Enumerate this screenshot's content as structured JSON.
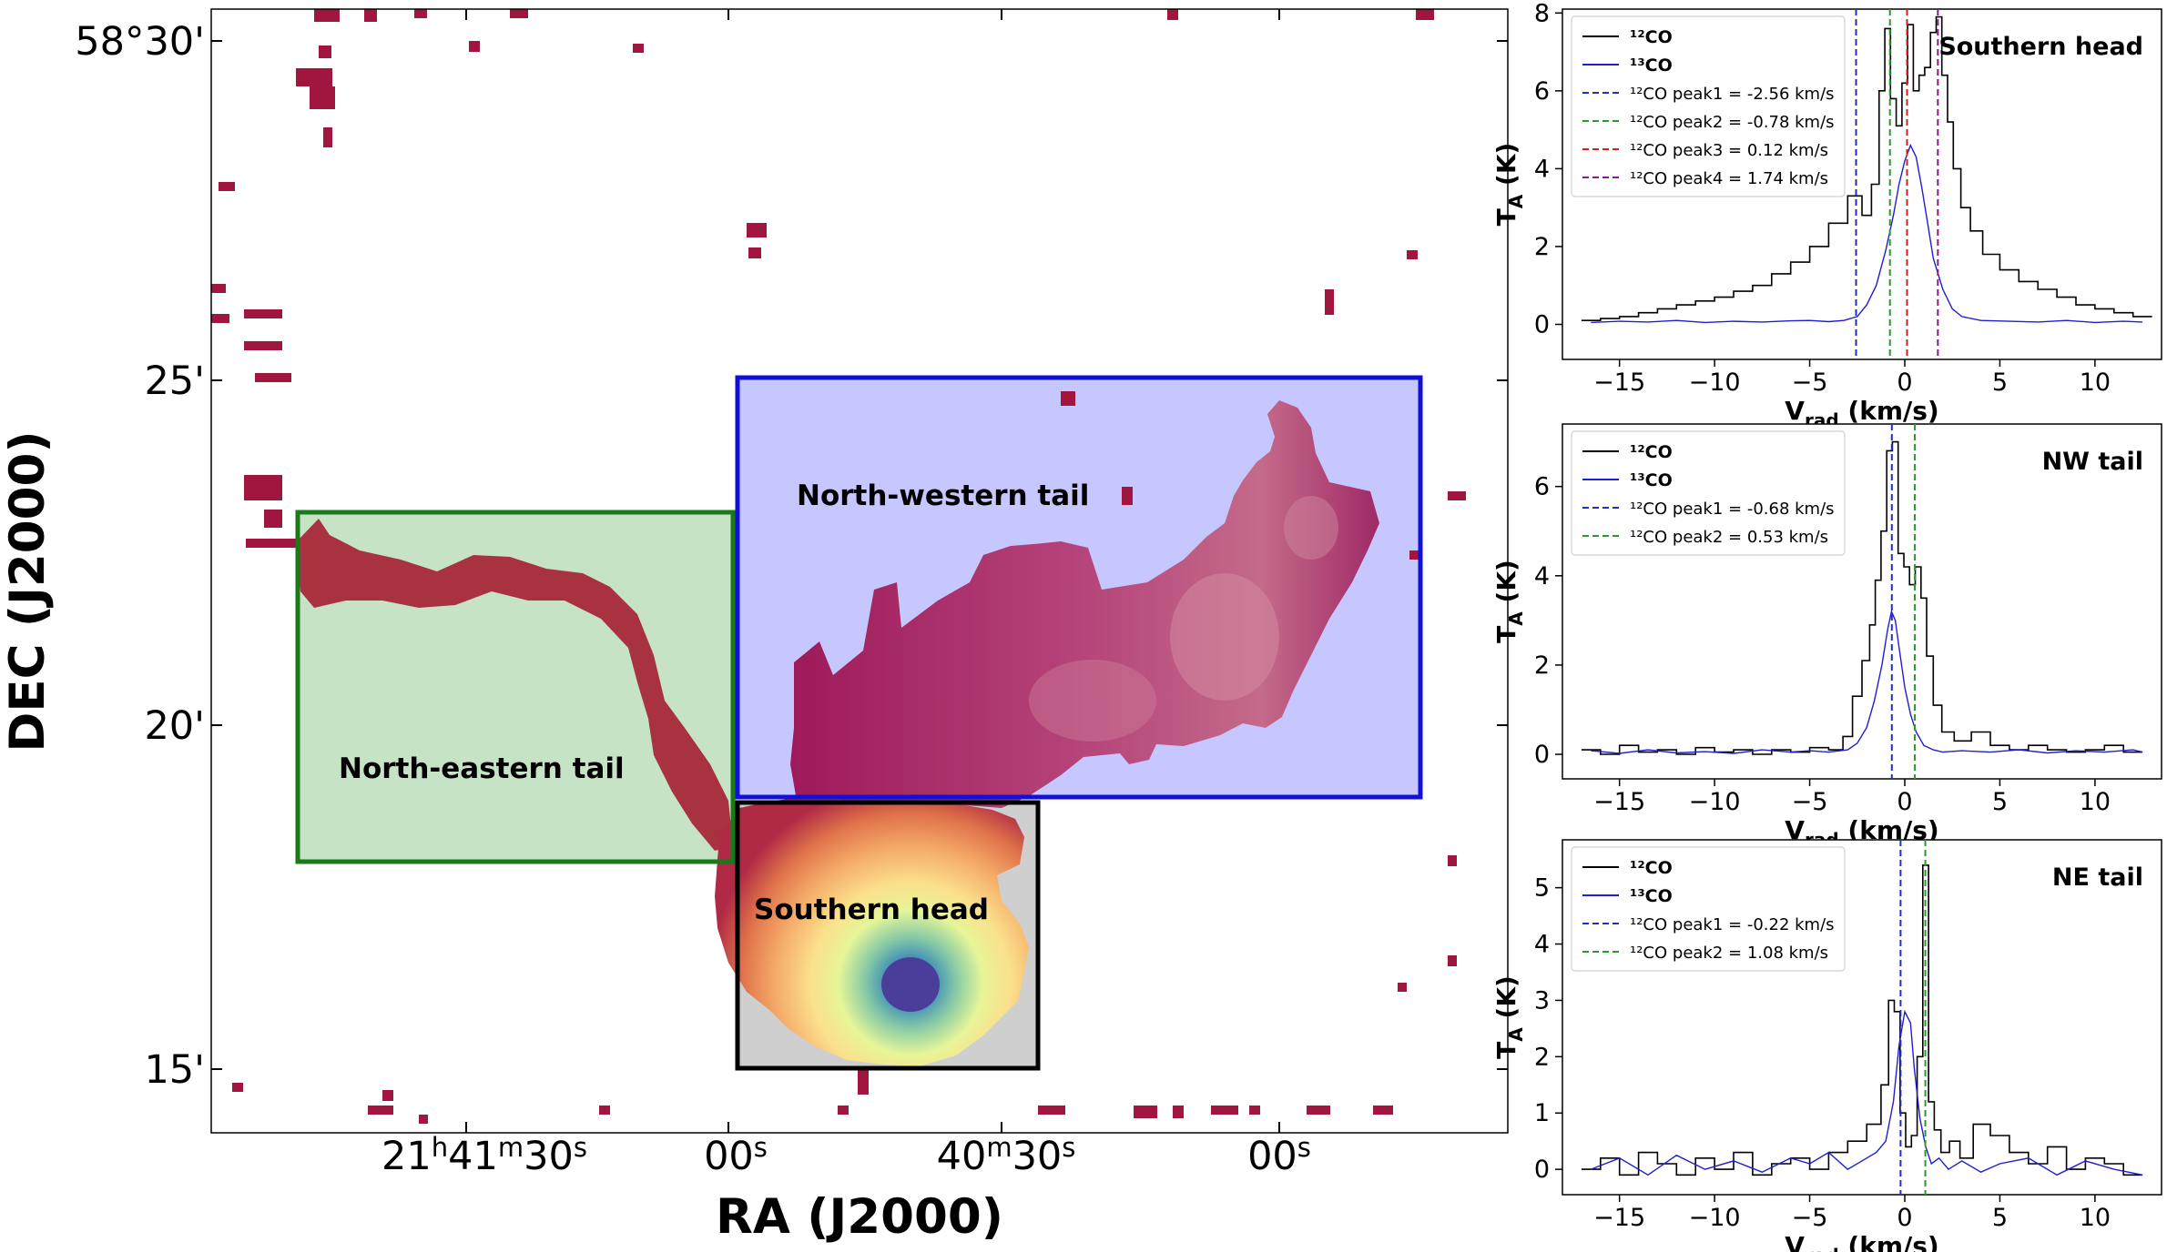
{
  "map_panel": {
    "xlabel": "RA (J2000)",
    "ylabel": "DEC (J2000)",
    "x_ticks": [
      {
        "value": "21h41m30s",
        "label_parts": [
          "21",
          "h",
          "41",
          "m",
          "30",
          "s"
        ]
      },
      {
        "value": "21h41m00s",
        "label_parts": [
          "00",
          "s"
        ]
      },
      {
        "value": "21h40m30s",
        "label_parts": [
          "40",
          "m",
          "30",
          "s"
        ]
      },
      {
        "value": "21h40m00s",
        "label_parts": [
          "00",
          "s"
        ]
      }
    ],
    "y_ticks": [
      "58°30'",
      "25'",
      "20'",
      "15'"
    ],
    "regions": [
      {
        "name": "North-eastern tail",
        "color": "#1a7a1a",
        "fill": "#c6e3c6"
      },
      {
        "name": "North-western tail",
        "color": "#1010d8",
        "fill": "#c7c7ff"
      },
      {
        "name": "Southern head",
        "color": "#000000",
        "fill": "#cfcfcf"
      }
    ],
    "colormap": [
      "#9e0142",
      "#c23a4b",
      "#e0734a",
      "#f4a968",
      "#fbe08b",
      "#e6f598",
      "#8fcfa4",
      "#3f8fb8",
      "#5e4fa2"
    ]
  },
  "chart_data": [
    {
      "type": "line",
      "title": "Southern head",
      "xlabel": "V",
      "xlabel_sub": "rad",
      "xlabel_unit": " (km/s)",
      "ylabel": "T",
      "ylabel_sub": "A",
      "ylabel_unit": " (K)",
      "xlim": [
        -18,
        13.5
      ],
      "ylim": [
        -0.9,
        8.1
      ],
      "x_ticks": [
        -15,
        -10,
        -5,
        0,
        5,
        10
      ],
      "x_tick_labels": [
        "−15",
        "−10",
        "−5",
        "0",
        "5",
        "10"
      ],
      "y_ticks": [
        0,
        2,
        4,
        6,
        8
      ],
      "y_tick_labels": [
        "0",
        "2",
        "4",
        "6",
        "8"
      ],
      "series": [
        {
          "name": "¹²CO",
          "color": "#000000",
          "style": "step",
          "x": [
            -16.5,
            -15.5,
            -14.5,
            -13.5,
            -12.5,
            -11.5,
            -10.5,
            -9.5,
            -8.5,
            -7.5,
            -6.5,
            -5.5,
            -4.5,
            -3.5,
            -2.5,
            -2,
            -1.5,
            -1.2,
            -0.9,
            -0.6,
            -0.3,
            0,
            0.3,
            0.6,
            0.9,
            1.2,
            1.5,
            1.8,
            2.1,
            2.4,
            2.7,
            3.2,
            3.7,
            4.5,
            5.5,
            6.5,
            7.5,
            8.5,
            9.5,
            10.5,
            11.5,
            12.5
          ],
          "y": [
            0.1,
            0.15,
            0.2,
            0.3,
            0.4,
            0.5,
            0.6,
            0.7,
            0.85,
            1.0,
            1.3,
            1.6,
            2.0,
            2.6,
            3.3,
            2.8,
            3.6,
            6.0,
            7.6,
            5.8,
            5.1,
            6.2,
            7.7,
            6.0,
            6.4,
            6.6,
            7.5,
            7.9,
            6.4,
            5.2,
            4.0,
            3.0,
            2.4,
            1.8,
            1.4,
            1.1,
            0.9,
            0.7,
            0.5,
            0.4,
            0.3,
            0.2
          ]
        },
        {
          "name": "¹³CO",
          "color": "#1f1fd0",
          "style": "line",
          "x": [
            -16.5,
            -15,
            -13.5,
            -12,
            -10.5,
            -9,
            -7.5,
            -6,
            -5,
            -4,
            -3.2,
            -2.5,
            -2,
            -1.5,
            -1,
            -0.6,
            -0.3,
            0,
            0.3,
            0.6,
            0.9,
            1.2,
            1.5,
            2,
            2.5,
            3,
            4,
            5.5,
            7,
            8.5,
            10,
            11.5,
            12.5
          ],
          "y": [
            0.05,
            0.08,
            0.06,
            0.1,
            0.05,
            0.08,
            0.06,
            0.09,
            0.1,
            0.07,
            0.1,
            0.2,
            0.5,
            1.0,
            1.9,
            2.8,
            3.6,
            4.2,
            4.6,
            4.3,
            3.5,
            2.6,
            1.7,
            0.9,
            0.4,
            0.2,
            0.1,
            0.08,
            0.06,
            0.1,
            0.05,
            0.08,
            0.06
          ]
        },
        {
          "name": "peak1",
          "color": "#2030c0",
          "style": "dashed",
          "vline": -2.56
        },
        {
          "name": "peak2",
          "color": "#2a9a2a",
          "style": "dashed",
          "vline": -0.78
        },
        {
          "name": "peak3",
          "color": "#d02020",
          "style": "dashed",
          "vline": 0.12
        },
        {
          "name": "peak4",
          "color": "#8a1a8a",
          "style": "dashed",
          "vline": 1.74
        }
      ],
      "legend": {
        "placement": "top-left",
        "entries": [
          {
            "text": "¹²CO",
            "bold": true,
            "color": "#000000",
            "dashed": false
          },
          {
            "text": "¹³CO",
            "bold": true,
            "color": "#1f1fd0",
            "dashed": false
          },
          {
            "text": "¹²CO peak1 = -2.56 km/s",
            "bold": false,
            "color": "#2030c0",
            "dashed": true
          },
          {
            "text": "¹²CO peak2 = -0.78 km/s",
            "bold": false,
            "color": "#2a9a2a",
            "dashed": true
          },
          {
            "text": "¹²CO peak3 = 0.12 km/s",
            "bold": false,
            "color": "#d02020",
            "dashed": true
          },
          {
            "text": "¹²CO peak4 = 1.74 km/s",
            "bold": false,
            "color": "#8a1a8a",
            "dashed": true
          }
        ]
      }
    },
    {
      "type": "line",
      "title": "NW tail",
      "xlabel": "V",
      "xlabel_sub": "rad",
      "xlabel_unit": " (km/s)",
      "ylabel": "T",
      "ylabel_sub": "A",
      "ylabel_unit": " (K)",
      "xlim": [
        -18,
        13.5
      ],
      "ylim": [
        -0.55,
        7.4
      ],
      "x_ticks": [
        -15,
        -10,
        -5,
        0,
        5,
        10
      ],
      "x_tick_labels": [
        "−15",
        "−10",
        "−5",
        "0",
        "5",
        "10"
      ],
      "y_ticks": [
        0,
        2,
        4,
        6
      ],
      "y_tick_labels": [
        "0",
        "2",
        "4",
        "6"
      ],
      "series": [
        {
          "name": "¹²CO",
          "color": "#000000",
          "style": "step",
          "x": [
            -16.5,
            -15.5,
            -14.5,
            -13.5,
            -12.5,
            -11.5,
            -10.5,
            -9.5,
            -8.5,
            -7.5,
            -6.5,
            -5.5,
            -4.5,
            -3.5,
            -3,
            -2.5,
            -2,
            -1.7,
            -1.4,
            -1.1,
            -0.8,
            -0.5,
            -0.2,
            0.1,
            0.4,
            0.7,
            1.0,
            1.3,
            1.7,
            2.2,
            3,
            4,
            5,
            6,
            7,
            8,
            9,
            10,
            11,
            12
          ],
          "y": [
            0.1,
            0.0,
            0.2,
            0.05,
            0.1,
            0.0,
            0.15,
            0.05,
            0.1,
            0.0,
            0.1,
            0.05,
            0.15,
            0.1,
            0.4,
            1.3,
            2.1,
            2.9,
            3.9,
            5.0,
            6.8,
            7.0,
            4.5,
            4.2,
            3.8,
            4.2,
            3.5,
            2.2,
            1.1,
            0.5,
            0.3,
            0.5,
            0.2,
            0.1,
            0.2,
            0.1,
            0.05,
            0.1,
            0.2,
            0.05
          ]
        },
        {
          "name": "¹³CO",
          "color": "#1f1fd0",
          "style": "line",
          "x": [
            -16.5,
            -15,
            -13.5,
            -12,
            -10.5,
            -9,
            -7.5,
            -6,
            -5,
            -4,
            -3,
            -2.5,
            -2,
            -1.6,
            -1.2,
            -0.9,
            -0.7,
            -0.5,
            -0.3,
            0,
            0.3,
            0.6,
            1,
            1.5,
            2,
            3,
            4.5,
            6,
            7.5,
            9,
            10.5,
            12,
            12.5
          ],
          "y": [
            0.08,
            0.02,
            0.1,
            0.03,
            0.06,
            0.02,
            0.1,
            0.05,
            0.08,
            0.05,
            0.1,
            0.25,
            0.6,
            1.2,
            2.0,
            2.8,
            3.2,
            3.0,
            2.4,
            1.5,
            0.9,
            0.5,
            0.2,
            0.1,
            0.05,
            0.08,
            0.05,
            0.1,
            0.03,
            0.08,
            0.05,
            0.1,
            0.05
          ]
        },
        {
          "name": "peak1",
          "color": "#2030c0",
          "style": "dashed",
          "vline": -0.68
        },
        {
          "name": "peak2",
          "color": "#2a9a2a",
          "style": "dashed",
          "vline": 0.53
        }
      ],
      "legend": {
        "placement": "top-left",
        "entries": [
          {
            "text": "¹²CO",
            "bold": true,
            "color": "#000000",
            "dashed": false
          },
          {
            "text": "¹³CO",
            "bold": true,
            "color": "#1f1fd0",
            "dashed": false
          },
          {
            "text": "¹²CO peak1 = -0.68 km/s",
            "bold": false,
            "color": "#2030c0",
            "dashed": true
          },
          {
            "text": "¹²CO peak2 = 0.53 km/s",
            "bold": false,
            "color": "#2a9a2a",
            "dashed": true
          }
        ]
      }
    },
    {
      "type": "line",
      "title": "NE tail",
      "xlabel": "V",
      "xlabel_sub": "rad",
      "xlabel_unit": " (km/s)",
      "ylabel": "T",
      "ylabel_sub": "A",
      "ylabel_unit": " (K)",
      "xlim": [
        -18,
        13.5
      ],
      "ylim": [
        -0.45,
        5.85
      ],
      "x_ticks": [
        -15,
        -10,
        -5,
        0,
        5,
        10
      ],
      "x_tick_labels": [
        "−15",
        "−10",
        "−5",
        "0",
        "5",
        "10"
      ],
      "y_ticks": [
        0,
        1,
        2,
        3,
        4,
        5
      ],
      "y_tick_labels": [
        "0",
        "1",
        "2",
        "3",
        "4",
        "5"
      ],
      "series": [
        {
          "name": "¹²CO",
          "color": "#000000",
          "style": "step",
          "x": [
            -16.5,
            -15.5,
            -14.5,
            -13.5,
            -12.5,
            -11.5,
            -10.5,
            -9.5,
            -8.5,
            -7.5,
            -6.5,
            -5.5,
            -4.5,
            -3.5,
            -2.5,
            -1.5,
            -1.0,
            -0.7,
            -0.4,
            -0.1,
            0.2,
            0.5,
            0.8,
            1.1,
            1.4,
            1.7,
            2.1,
            2.6,
            3.2,
            4,
            5,
            6,
            7,
            8,
            9,
            10,
            11,
            12
          ],
          "y": [
            0.0,
            0.2,
            -0.1,
            0.3,
            0.1,
            -0.1,
            0.2,
            0.0,
            0.3,
            -0.1,
            0.1,
            0.2,
            0.0,
            0.3,
            0.5,
            0.8,
            1.5,
            3.0,
            2.8,
            1.0,
            0.4,
            0.6,
            2.0,
            5.4,
            1.2,
            0.7,
            0.3,
            0.5,
            0.2,
            0.8,
            0.6,
            0.3,
            0.1,
            0.4,
            0.0,
            0.2,
            0.1,
            -0.1
          ]
        },
        {
          "name": "¹³CO",
          "color": "#1f1fd0",
          "style": "line",
          "x": [
            -16.5,
            -15,
            -13.5,
            -12,
            -10.5,
            -9,
            -7.5,
            -6,
            -5,
            -4,
            -3,
            -2,
            -1.5,
            -1,
            -0.6,
            -0.3,
            0,
            0.3,
            0.5,
            0.8,
            1.1,
            1.4,
            1.8,
            2.3,
            3,
            4,
            5,
            6.5,
            8,
            9.5,
            11,
            12.5
          ],
          "y": [
            0.0,
            0.2,
            -0.1,
            0.25,
            0.0,
            0.15,
            -0.05,
            0.2,
            0.1,
            0.3,
            0.0,
            0.2,
            0.3,
            0.5,
            1.2,
            2.2,
            2.8,
            2.6,
            1.8,
            0.9,
            0.4,
            0.1,
            0.2,
            0.0,
            0.15,
            -0.05,
            0.1,
            0.2,
            -0.1,
            0.15,
            0.0,
            -0.1
          ]
        },
        {
          "name": "peak1",
          "color": "#2030c0",
          "style": "dashed",
          "vline": -0.22
        },
        {
          "name": "peak2",
          "color": "#2a9a2a",
          "style": "dashed",
          "vline": 1.08
        }
      ],
      "legend": {
        "placement": "top-left",
        "entries": [
          {
            "text": "¹²CO",
            "bold": true,
            "color": "#000000",
            "dashed": false
          },
          {
            "text": "¹³CO",
            "bold": true,
            "color": "#1f1fd0",
            "dashed": false
          },
          {
            "text": "¹²CO peak1 = -0.22 km/s",
            "bold": false,
            "color": "#2030c0",
            "dashed": true
          },
          {
            "text": "¹²CO peak2 = 1.08 km/s",
            "bold": false,
            "color": "#2a9a2a",
            "dashed": true
          }
        ]
      }
    }
  ]
}
